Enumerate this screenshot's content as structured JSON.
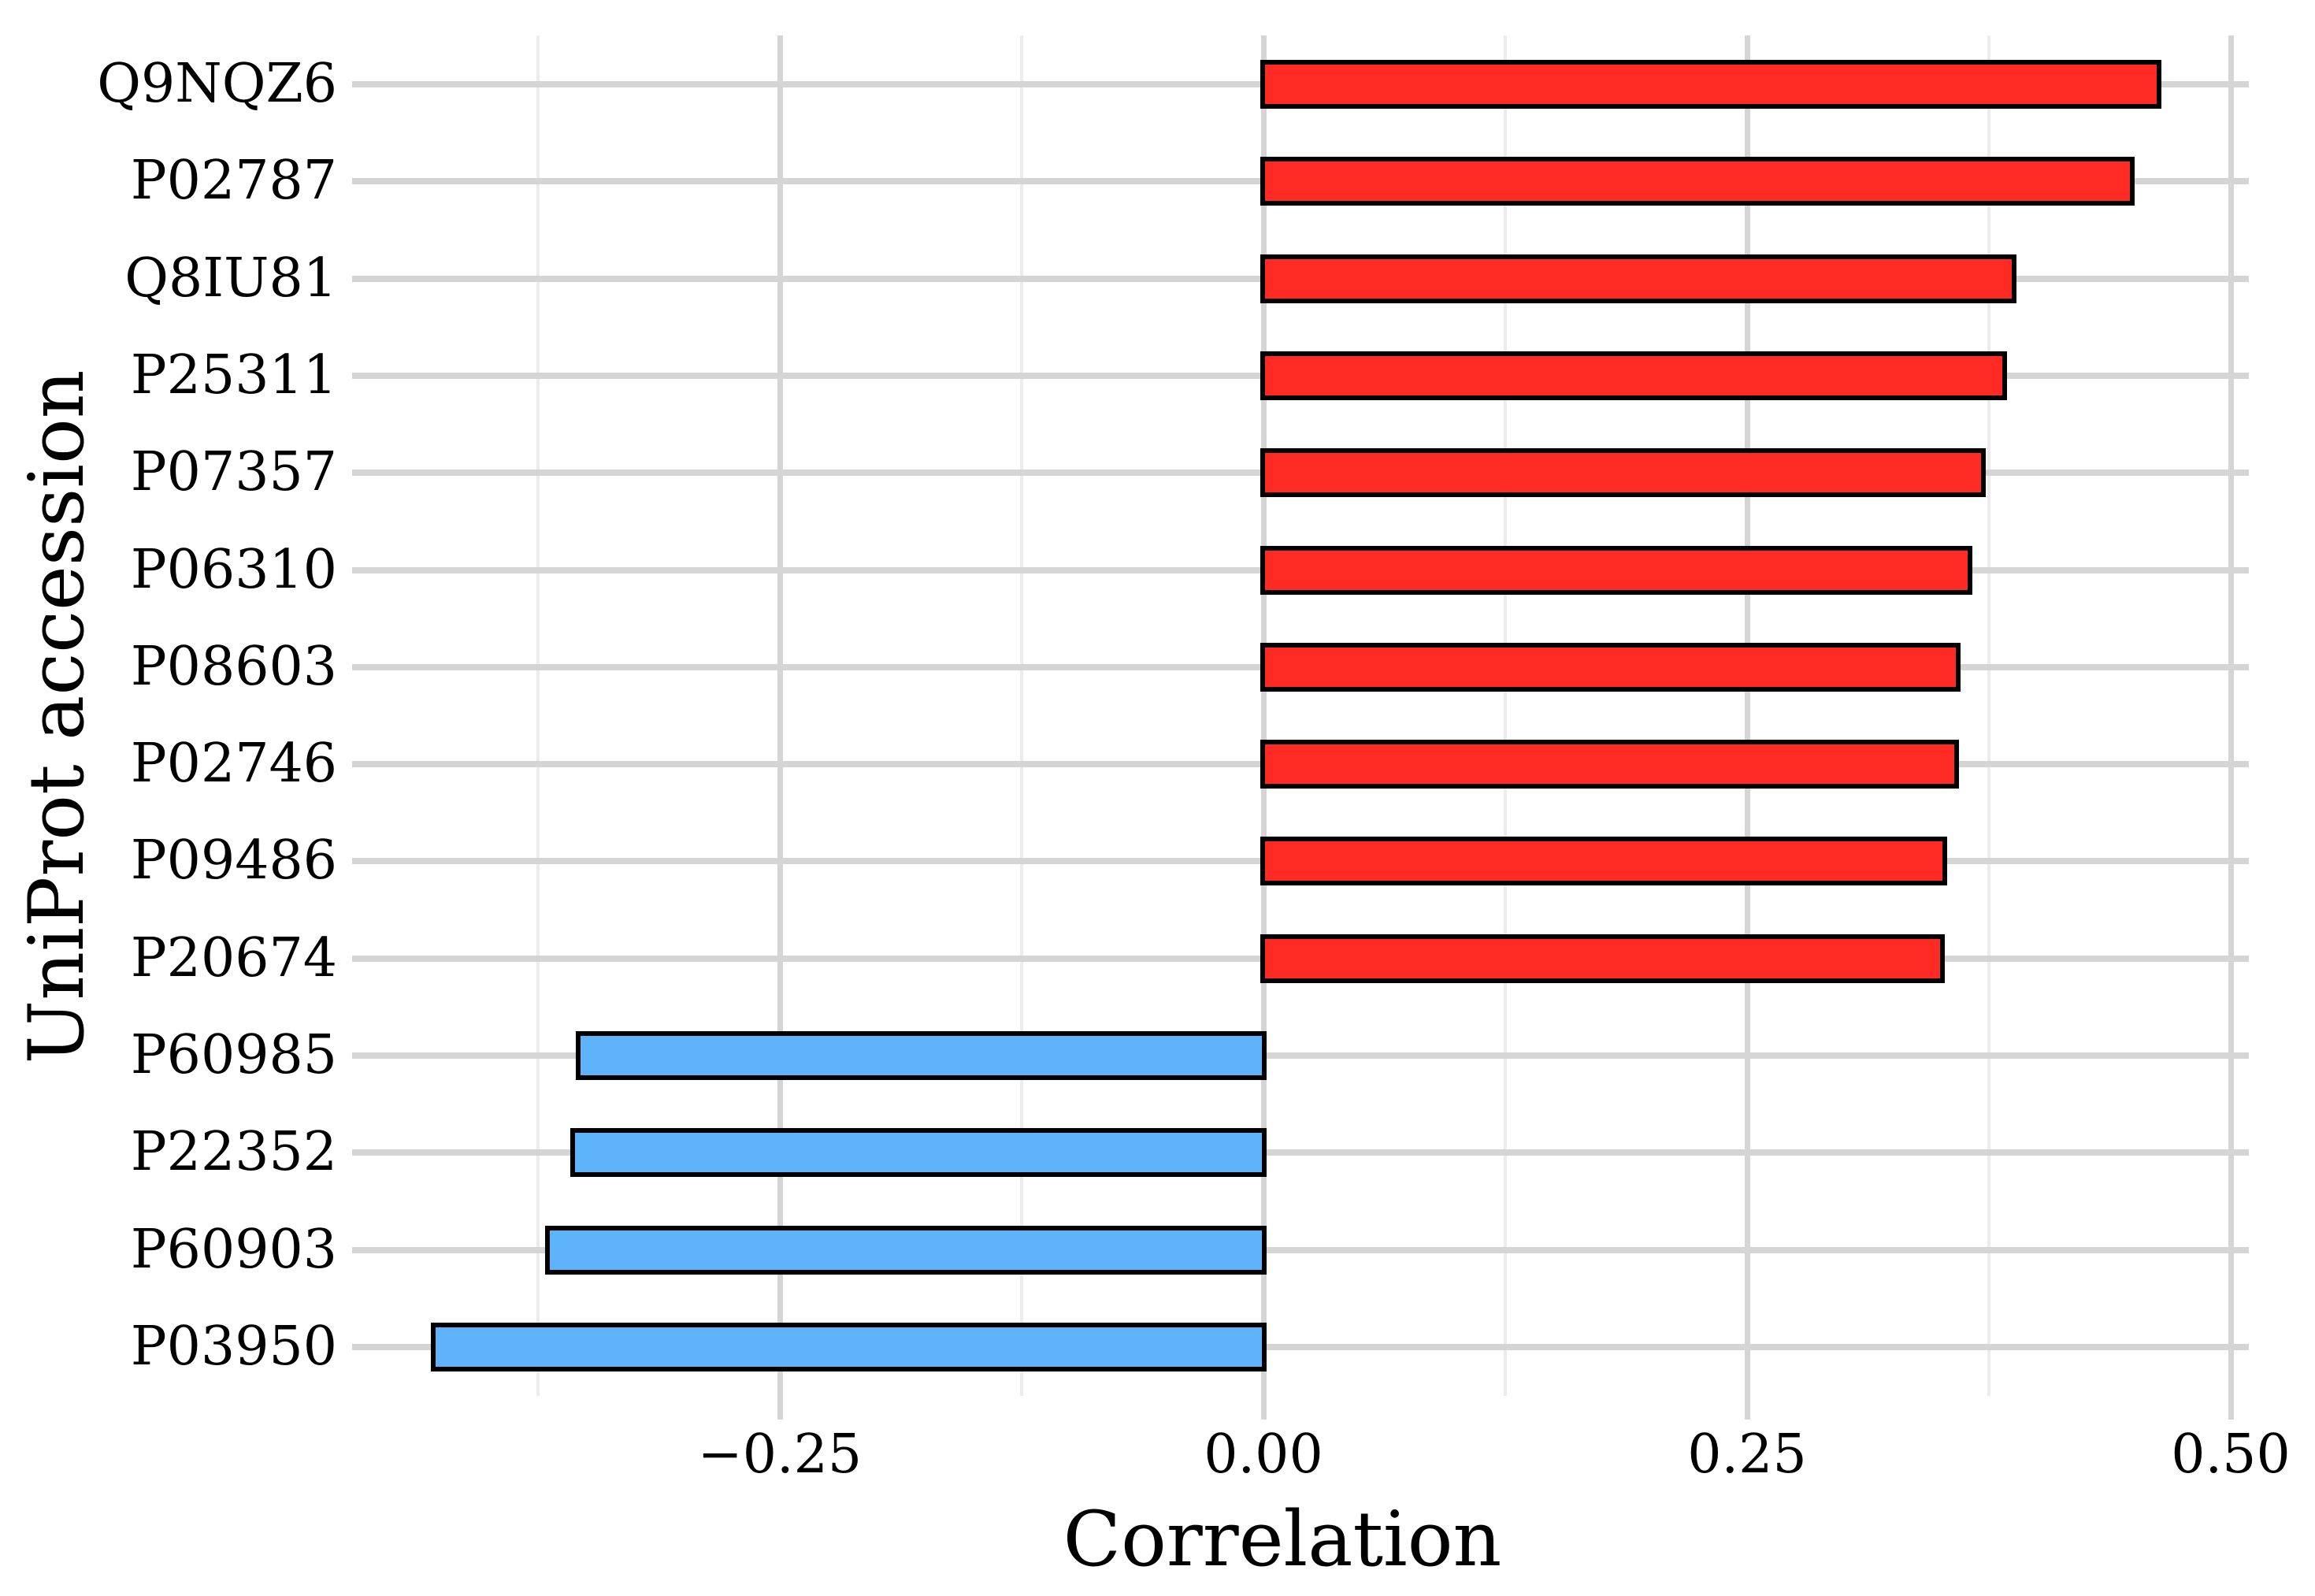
{
  "figure": {
    "background_color": "#ffffff",
    "text_color": "#000000"
  },
  "chart_data": {
    "type": "bar",
    "orientation": "horizontal",
    "title": "",
    "xlabel": "Correlation",
    "ylabel": "UniProt accession",
    "categories": [
      "Q9NQZ6",
      "P02787",
      "Q8IU81",
      "P25311",
      "P07357",
      "P06310",
      "P08603",
      "P02746",
      "P09486",
      "P20674",
      "P60985",
      "P22352",
      "P60903",
      "P03950"
    ],
    "values": [
      0.466,
      0.452,
      0.391,
      0.386,
      0.375,
      0.368,
      0.362,
      0.361,
      0.355,
      0.354,
      -0.357,
      -0.36,
      -0.373,
      -0.432
    ],
    "xlim": [
      -0.471,
      0.509
    ],
    "x_ticks": [
      {
        "value": -0.25,
        "label": "−0.25"
      },
      {
        "value": 0.0,
        "label": "0.00"
      },
      {
        "value": 0.25,
        "label": "0.25"
      },
      {
        "value": 0.5,
        "label": "0.50"
      }
    ],
    "x_minor_gridlines": [
      -0.375,
      -0.125,
      0.125,
      0.375
    ],
    "grid": true,
    "legend": false,
    "colors": {
      "positive_bar": "#fd2b24",
      "negative_bar": "#5eb3fb",
      "bar_border": "#000000",
      "grid_major": "#d5d5d5",
      "grid_minor": "#ececec",
      "background": "#ffffff",
      "text": "#000000"
    }
  }
}
